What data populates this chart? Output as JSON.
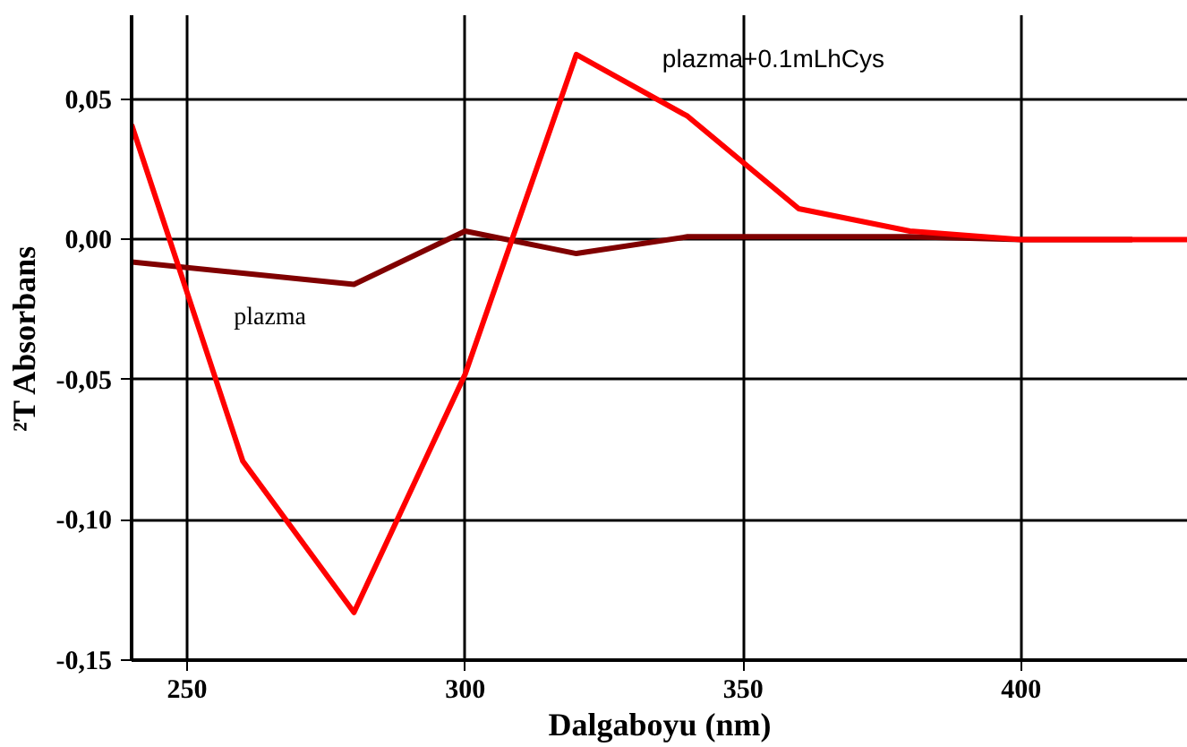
{
  "chart_data": {
    "type": "line",
    "xlabel": "Dalgaboyu (nm)",
    "ylabel": "²T Absorbans",
    "x": [
      240,
      260,
      280,
      300,
      320,
      340,
      360,
      380,
      400,
      430
    ],
    "series": [
      {
        "name": "plazma",
        "color": "#800000",
        "x": [
          240,
          260,
          280,
          300,
          320,
          340,
          360,
          380,
          400,
          420
        ],
        "values": [
          -0.008,
          -0.012,
          -0.016,
          0.003,
          -0.005,
          0.001,
          0.001,
          0.001,
          0,
          0
        ]
      },
      {
        "name": "plazma+0.1mLhCys",
        "color": "#ff0000",
        "values": [
          0.041,
          -0.079,
          -0.133,
          -0.048,
          0.066,
          0.044,
          0.011,
          0.003,
          0,
          0
        ]
      }
    ],
    "xlim": [
      240,
      430
    ],
    "ylim": [
      -0.15,
      0.08
    ],
    "xticks": [
      250,
      300,
      350,
      400
    ],
    "yticks": [
      {
        "value": -0.15,
        "label": "-0,15"
      },
      {
        "value": -0.1,
        "label": "-0,10"
      },
      {
        "value": -0.05,
        "label": "-0,05"
      },
      {
        "value": 0,
        "label": "0,00"
      },
      {
        "value": 0.05,
        "label": "0,05"
      }
    ],
    "grid": true,
    "marker": "none",
    "line_style": "solid"
  }
}
